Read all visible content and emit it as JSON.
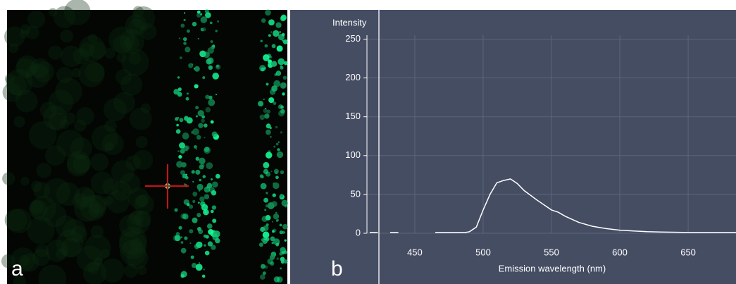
{
  "panel_labels": [
    "a",
    "b"
  ],
  "chart_data": {
    "type": "line",
    "xlabel": "Emission wavelength (nm)",
    "ylabel": "Intensity",
    "x": [
      417,
      420,
      423,
      425,
      432,
      438,
      440,
      465,
      475,
      487,
      490,
      495,
      500,
      505,
      510,
      515,
      520,
      525,
      530,
      540,
      550,
      555,
      560,
      570,
      580,
      590,
      600,
      610,
      620,
      630,
      650,
      685
    ],
    "values": [
      1,
      1,
      1,
      null,
      1,
      1,
      null,
      1,
      1,
      1,
      2,
      8,
      30,
      50,
      65,
      68,
      70,
      64,
      55,
      42,
      30,
      27,
      22,
      14,
      9,
      6,
      4,
      3,
      2,
      1.5,
      1,
      1
    ],
    "color": "#ffffff",
    "xlim": [
      415,
      685
    ],
    "ylim": [
      0,
      255
    ],
    "xticks": [
      450,
      500,
      550,
      600,
      650
    ],
    "yticks": [
      0,
      50,
      100,
      150,
      200,
      250
    ],
    "grid": true
  }
}
